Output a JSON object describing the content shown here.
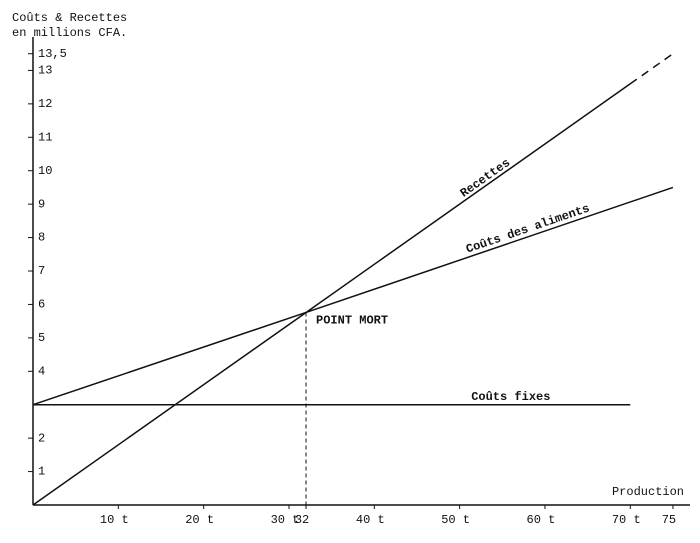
{
  "chart_data": {
    "type": "line",
    "y_label_lines": [
      "Coûts & Recettes",
      "en millions CFA."
    ],
    "x_label": "Production",
    "xlim": [
      0,
      77
    ],
    "ylim": [
      0,
      14
    ],
    "xticks": [
      {
        "value": 10,
        "label": "10 t"
      },
      {
        "value": 20,
        "label": "20 t"
      },
      {
        "value": 30,
        "label": "30 t"
      },
      32,
      {
        "value": 40,
        "label": "40 t"
      },
      {
        "value": 50,
        "label": "50 t"
      },
      {
        "value": 60,
        "label": "60 t"
      },
      {
        "value": 70,
        "label": "70 t"
      },
      75
    ],
    "yticks": [
      1,
      2,
      4,
      5,
      6,
      7,
      8,
      9,
      10,
      11,
      12,
      13,
      {
        "value": 13.5,
        "label": "13,5"
      }
    ],
    "series": [
      {
        "name": "Recettes",
        "color": "#111111",
        "x": [
          0,
          32,
          70,
          75
        ],
        "values": [
          0,
          5.76,
          12.6,
          13.5
        ],
        "dash_after_x": 70,
        "label_at_x": 53
      },
      {
        "name": "Coûts des aliments",
        "color": "#111111",
        "x": [
          0,
          32,
          75
        ],
        "values": [
          3,
          5.76,
          9.5
        ],
        "label_at_x": 58
      },
      {
        "name": "Coûts fixes",
        "color": "#111111",
        "x": [
          0,
          70
        ],
        "values": [
          3,
          3
        ],
        "label_at_x": 56
      }
    ],
    "annotation": {
      "label": "POINT MORT",
      "x": 32,
      "y": 5.76
    }
  }
}
